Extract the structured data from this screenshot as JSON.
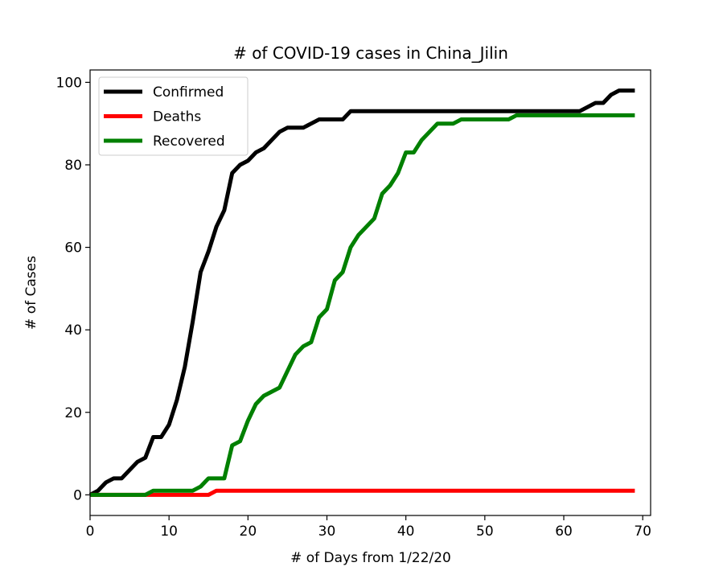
{
  "chart_data": {
    "type": "line",
    "title": "# of COVID-19 cases in China_Jilin",
    "xlabel": "# of Days from 1/22/20",
    "ylabel": "# of Cases",
    "xlim": [
      0,
      71
    ],
    "ylim": [
      -5,
      103
    ],
    "xticks": [
      0,
      10,
      20,
      30,
      40,
      50,
      60,
      70
    ],
    "yticks": [
      0,
      20,
      40,
      60,
      80,
      100
    ],
    "grid": false,
    "legend_position": "top-left",
    "x": [
      0,
      1,
      2,
      3,
      4,
      5,
      6,
      7,
      8,
      9,
      10,
      11,
      12,
      13,
      14,
      15,
      16,
      17,
      18,
      19,
      20,
      21,
      22,
      23,
      24,
      25,
      26,
      27,
      28,
      29,
      30,
      31,
      32,
      33,
      34,
      35,
      36,
      37,
      38,
      39,
      40,
      41,
      42,
      43,
      44,
      45,
      46,
      47,
      48,
      49,
      50,
      51,
      52,
      53,
      54,
      55,
      56,
      57,
      58,
      59,
      60,
      61,
      62,
      63,
      64,
      65,
      66,
      67,
      68,
      69
    ],
    "series": [
      {
        "name": "Confirmed",
        "color": "#000000",
        "values": [
          0,
          1,
          3,
          4,
          4,
          6,
          8,
          9,
          14,
          14,
          17,
          23,
          31,
          42,
          54,
          59,
          65,
          69,
          78,
          80,
          81,
          83,
          84,
          86,
          88,
          89,
          89,
          89,
          90,
          91,
          91,
          91,
          91,
          93,
          93,
          93,
          93,
          93,
          93,
          93,
          93,
          93,
          93,
          93,
          93,
          93,
          93,
          93,
          93,
          93,
          93,
          93,
          93,
          93,
          93,
          93,
          93,
          93,
          93,
          93,
          93,
          93,
          93,
          94,
          95,
          95,
          97,
          98,
          98,
          98
        ]
      },
      {
        "name": "Deaths",
        "color": "#ff0000",
        "values": [
          0,
          0,
          0,
          0,
          0,
          0,
          0,
          0,
          0,
          0,
          0,
          0,
          0,
          0,
          0,
          0,
          1,
          1,
          1,
          1,
          1,
          1,
          1,
          1,
          1,
          1,
          1,
          1,
          1,
          1,
          1,
          1,
          1,
          1,
          1,
          1,
          1,
          1,
          1,
          1,
          1,
          1,
          1,
          1,
          1,
          1,
          1,
          1,
          1,
          1,
          1,
          1,
          1,
          1,
          1,
          1,
          1,
          1,
          1,
          1,
          1,
          1,
          1,
          1,
          1,
          1,
          1,
          1,
          1,
          1
        ]
      },
      {
        "name": "Recovered",
        "color": "#008000",
        "values": [
          0,
          0,
          0,
          0,
          0,
          0,
          0,
          0,
          1,
          1,
          1,
          1,
          1,
          1,
          2,
          4,
          4,
          4,
          12,
          13,
          18,
          22,
          24,
          25,
          26,
          30,
          34,
          36,
          37,
          43,
          45,
          52,
          54,
          60,
          63,
          65,
          67,
          73,
          75,
          78,
          83,
          83,
          86,
          88,
          90,
          90,
          90,
          91,
          91,
          91,
          91,
          91,
          91,
          91,
          92,
          92,
          92,
          92,
          92,
          92,
          92,
          92,
          92,
          92,
          92,
          92,
          92,
          92,
          92,
          92
        ]
      }
    ]
  }
}
